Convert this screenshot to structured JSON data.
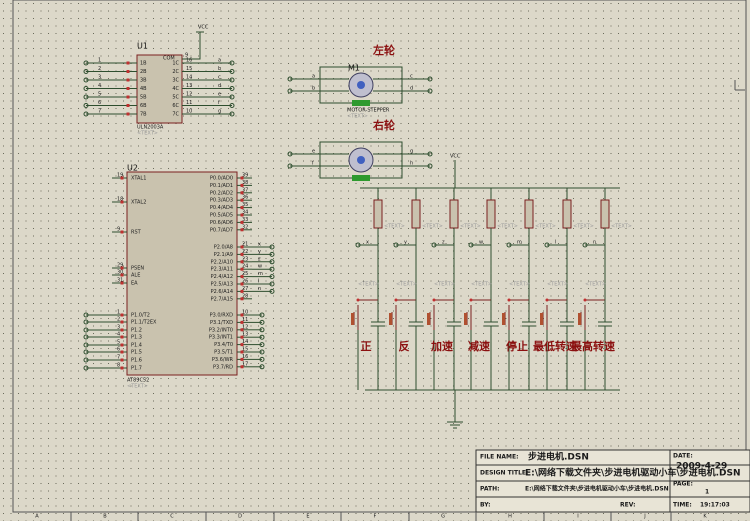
{
  "net_labels": {
    "vcc_top": "VCC",
    "vcc_res": "VCC"
  },
  "u1": {
    "ref": "U1",
    "part": "ULN2003A",
    "text": "<TEXT>",
    "com": "COM",
    "com_pin": "9",
    "left_pins": [
      "1",
      "2",
      "3",
      "4",
      "5",
      "6",
      "7"
    ],
    "left_names": [
      "1B",
      "2B",
      "3B",
      "4B",
      "5B",
      "6B",
      "7B"
    ],
    "right_names": [
      "1C",
      "2C",
      "3C",
      "4C",
      "5C",
      "6C",
      "7C"
    ],
    "right_pins": [
      "16",
      "15",
      "14",
      "13",
      "12",
      "11",
      "10"
    ],
    "out_nets": [
      "a",
      "b",
      "c",
      "d",
      "e",
      "f",
      "g"
    ]
  },
  "motors": {
    "left_label": "左轮",
    "right_label": "右轮",
    "ref": "M1",
    "part": "MOTOR-STEPPER",
    "text": "<TEXT>",
    "m1_nets": [
      "a",
      "b",
      "c",
      "d"
    ],
    "m2_nets": [
      "e",
      "f",
      "g",
      "h"
    ]
  },
  "u2": {
    "ref": "U2",
    "part": "AT89C52",
    "text": "<TEXT>",
    "left": [
      {
        "name": "XTAL1",
        "pin": "19"
      },
      {
        "name": "XTAL2",
        "pin": "18"
      },
      {
        "name": "RST",
        "pin": "9"
      },
      {
        "name": "PSEN",
        "pin": "29"
      },
      {
        "name": "ALE",
        "pin": "30"
      },
      {
        "name": "EA",
        "pin": "31"
      },
      {
        "name": "P1.0/T2",
        "pin": "1"
      },
      {
        "name": "P1.1/T2EX",
        "pin": "2"
      },
      {
        "name": "P1.2",
        "pin": "3"
      },
      {
        "name": "P1.3",
        "pin": "4"
      },
      {
        "name": "P1.4",
        "pin": "5"
      },
      {
        "name": "P1.5",
        "pin": "6"
      },
      {
        "name": "P1.6",
        "pin": "7"
      },
      {
        "name": "P1.7",
        "pin": "8"
      }
    ],
    "right": [
      {
        "name": "P0.0/AD0",
        "pin": "39"
      },
      {
        "name": "P0.1/AD1",
        "pin": "38"
      },
      {
        "name": "P0.2/AD2",
        "pin": "37"
      },
      {
        "name": "P0.3/AD3",
        "pin": "36"
      },
      {
        "name": "P0.4/AD4",
        "pin": "35"
      },
      {
        "name": "P0.5/AD5",
        "pin": "34"
      },
      {
        "name": "P0.6/AD6",
        "pin": "33"
      },
      {
        "name": "P0.7/AD7",
        "pin": "32"
      },
      {
        "name": "P2.0/A8",
        "pin": "21"
      },
      {
        "name": "P2.1/A9",
        "pin": "22"
      },
      {
        "name": "P2.2/A10",
        "pin": "23"
      },
      {
        "name": "P2.3/A11",
        "pin": "24"
      },
      {
        "name": "P2.4/A12",
        "pin": "25"
      },
      {
        "name": "P2.5/A13",
        "pin": "26"
      },
      {
        "name": "P2.6/A14",
        "pin": "27"
      },
      {
        "name": "P2.7/A15",
        "pin": "28"
      },
      {
        "name": "P3.0/RXD",
        "pin": "10"
      },
      {
        "name": "P3.1/TXD",
        "pin": "11"
      },
      {
        "name": "P3.2/INT0",
        "pin": "12"
      },
      {
        "name": "P3.3/INT1",
        "pin": "13"
      },
      {
        "name": "P3.4/T0",
        "pin": "14"
      },
      {
        "name": "P3.5/T1",
        "pin": "15"
      },
      {
        "name": "P3.6/WR",
        "pin": "16"
      },
      {
        "name": "P3.7/RD",
        "pin": "17"
      }
    ],
    "p2_nets": [
      "x",
      "y",
      "z",
      "w",
      "m",
      "l",
      "n"
    ]
  },
  "keys": {
    "nets": [
      "x",
      "y",
      "z",
      "w",
      "m",
      "l",
      "n"
    ],
    "labels": [
      "正",
      "反",
      "加速",
      "减速",
      "停止",
      "最低转速",
      "最高转速"
    ],
    "text": "<TEXT>"
  },
  "title_block": {
    "file_name_label": "FILE NAME:",
    "file_name": "步进电机.DSN",
    "design_title_label": "DESIGN TITLE:",
    "design_title": "E:\\网络下载文件夹\\步进电机驱动小车\\步进电机.DSN",
    "path_label": "PATH:",
    "path": "E:\\网络下载文件夹\\步进电机驱动小车\\步进电机.DSN",
    "by_label": "BY:",
    "rev_label": "REV:",
    "date_label": "DATE:",
    "date": "2009-4-29",
    "page_label": "PAGE:",
    "page": "1",
    "time_label": "TIME:",
    "time": "19:17:03"
  },
  "border": {
    "columns": [
      "A",
      "B",
      "C",
      "D",
      "E",
      "F",
      "G",
      "H",
      "I",
      "J",
      "K"
    ]
  }
}
